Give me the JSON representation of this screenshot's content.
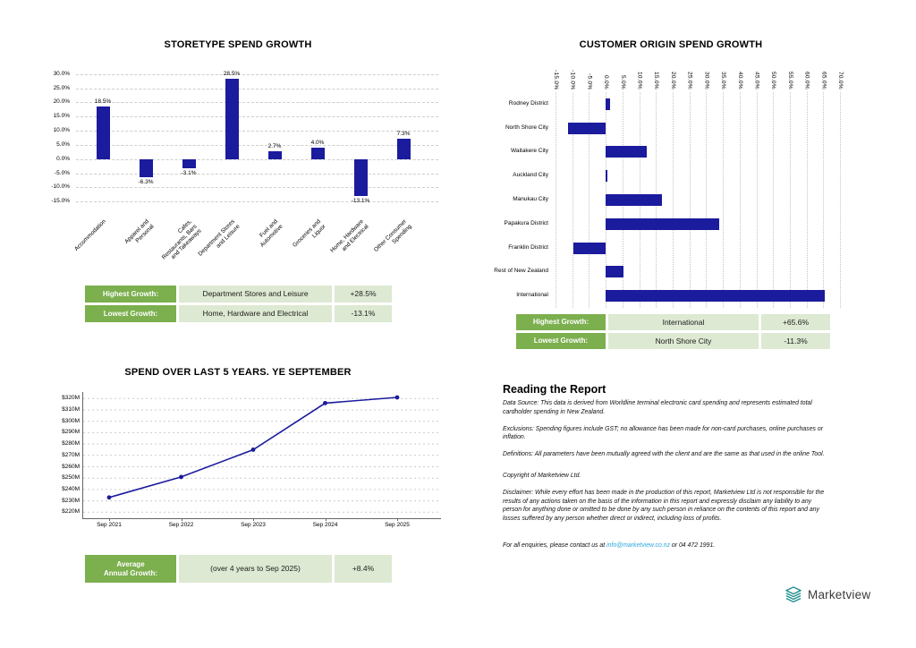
{
  "colors": {
    "bar": "#1b1b9d",
    "table_label_bg": "#7caf4e",
    "table_value_bg": "#dde9d2",
    "link": "#2ba7df",
    "logo_teal": "#1d8c8c",
    "grid": "#cccccc"
  },
  "chart_data": [
    {
      "type": "bar",
      "title": "STORETYPE SPEND GROWTH",
      "categories": [
        "Accommodation",
        "Apparel and\nPersonal",
        "Cafes,\nRestaurants, Bars\nand Takeaways",
        "Department Stores\nand Leisure",
        "Fuel and\nAutomotive",
        "Groceries and\nLiquor",
        "Home, Hardware\nand Electrical",
        "Other Consumer\nSpending"
      ],
      "values": [
        18.5,
        -6.3,
        -3.1,
        28.5,
        2.7,
        4.0,
        -13.1,
        7.3
      ],
      "value_labels": [
        "18.5%",
        "-6.3%",
        "-3.1%",
        "28.5%",
        "2.7%",
        "4.0%",
        "-13.1%",
        "7.3%"
      ],
      "ytick_values": [
        30,
        25,
        20,
        15,
        10,
        5,
        0,
        -5,
        -10,
        -15
      ],
      "ytick_labels": [
        "30.0%",
        "25.0%",
        "20.0%",
        "15.0%",
        "10.0%",
        "5.0%",
        "0.0%",
        "-5.0%",
        "-10.0%",
        "-15.0%"
      ],
      "ylim": [
        -18.7,
        31.8
      ],
      "grid": "dashed-horizontal",
      "legend": "none"
    },
    {
      "type": "bar-horizontal",
      "title": "CUSTOMER ORIGIN SPEND GROWTH",
      "categories": [
        "Rodney District",
        "North Shore City",
        "Waitakere City",
        "Auckland City",
        "Manukau City",
        "Papakura District",
        "Franklin District",
        "Rest of New Zealand",
        "International"
      ],
      "values": [
        1.2,
        -11.3,
        12.3,
        0.6,
        16.8,
        33.8,
        -9.7,
        5.3,
        65.6
      ],
      "xtick_values": [
        -15,
        -10,
        -5,
        0,
        5,
        10,
        15,
        20,
        25,
        30,
        35,
        40,
        45,
        50,
        55,
        60,
        65,
        70
      ],
      "xtick_labels": [
        "-15.0%",
        "-10.0%",
        "-5.0%",
        "0.0%",
        "5.0%",
        "10.0%",
        "15.0%",
        "20.0%",
        "25.0%",
        "30.0%",
        "35.0%",
        "40.0%",
        "45.0%",
        "50.0%",
        "55.0%",
        "60.0%",
        "65.0%",
        "70.0%"
      ],
      "xlim": [
        -15,
        70
      ],
      "grid": "dotted-vertical",
      "legend": "none"
    },
    {
      "type": "line",
      "title": "SPEND OVER LAST 5 YEARS. YE SEPTEMBER",
      "x": [
        "Sep 2021",
        "Sep 2022",
        "Sep 2023",
        "Sep 2024",
        "Sep 2025"
      ],
      "values": [
        233,
        251,
        275,
        316,
        321
      ],
      "unit": "$M",
      "ytick_values": [
        220,
        230,
        240,
        250,
        260,
        270,
        280,
        290,
        300,
        310,
        320
      ],
      "ytick_labels": [
        "$220M",
        "$230M",
        "$240M",
        "$250M",
        "$260M",
        "$270M",
        "$280M",
        "$290M",
        "$300M",
        "$310M",
        "$320M"
      ],
      "ylim": [
        214,
        326
      ],
      "grid": "dashed-horizontal",
      "legend": "none"
    }
  ],
  "summary_tables": {
    "storetype": {
      "rows": [
        {
          "label": "Highest Growth:",
          "text": "Department Stores and Leisure",
          "pct": "+28.5%"
        },
        {
          "label": "Lowest Growth:",
          "text": "Home, Hardware and Electrical",
          "pct": "-13.1%"
        }
      ]
    },
    "origin": {
      "rows": [
        {
          "label": "Highest Growth:",
          "text": "International",
          "pct": "+65.6%"
        },
        {
          "label": "Lowest Growth:",
          "text": "North Shore City",
          "pct": "-11.3%"
        }
      ]
    },
    "average": {
      "rows": [
        {
          "label": "Average\nAnnual Growth:",
          "text": "(over 4 years to Sep 2025)",
          "pct": "+8.4%"
        }
      ]
    }
  },
  "reading": {
    "title": "Reading the Report",
    "paragraphs": [
      "Data Source: This data is derived from Worldline terminal electronic card spending and represents estimated total cardholder spending in New Zealand.",
      "Exclusions: Spending figures include GST; no allowance has been made for non-card purchases, online purchases or inflation.",
      "Definitions: All parameters have been mutually agreed with the client and are the same as that used in the online Tool.",
      "Copyright of Marketview Ltd.",
      "Disclaimer: While every effort has been made in the production of this report, Marketview Ltd is not responsible for the results of any actions taken on the basis of the information in this report and expressly disclaim any liability to any person for anything done or omitted to be done by any such person in reliance on the contents of this report and any losses suffered by any person whether direct or indirect, including loss of profits."
    ],
    "contact": {
      "text_before": "For all enquiries, please contact us at ",
      "link_text": "info@marketview.co.nz",
      "text_after": " or 04 472 1991."
    }
  },
  "logo": {
    "text": "Marketview",
    "icon": "layers-icon"
  }
}
